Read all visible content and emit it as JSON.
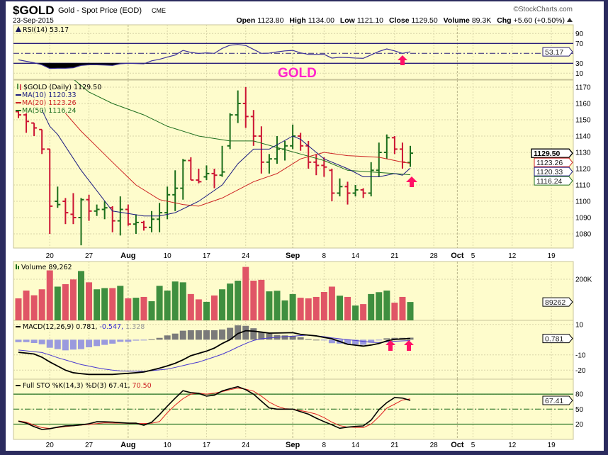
{
  "header": {
    "symbol": "$GOLD",
    "name": "Gold - Spot Price (EOD)",
    "exchange": "CME",
    "date": "23-Sep-2015",
    "copyright": "©StockCharts.com",
    "open_label": "Open",
    "open": "1123.80",
    "high_label": "High",
    "high": "1134.00",
    "low_label": "Low",
    "low": "1121.10",
    "close_label": "Close",
    "close": "1129.50",
    "volume_label": "Volume",
    "volume": "89.3K",
    "chg_label": "Chg",
    "chg": "+5.60 (+0.50%)",
    "up_icon": "triangle-up-icon"
  },
  "annotation": {
    "text": "GOLD",
    "color": "#ff22cc",
    "arrow_color": "#ff1166"
  },
  "colors": {
    "up": "#1b6e1b",
    "down": "#cc1433",
    "vol_up": "#3f8f3f",
    "vol_down": "#e05566",
    "ma10": "#1a1a80",
    "ma20": "#cc2222",
    "ma50": "#1e6e1e",
    "rsi": "#3a2e9c",
    "signal": "#4a3ad0",
    "hist_pos": "#7a7a7a",
    "hist_neg": "#9a9ade",
    "sto_d": "#e02222",
    "panel_bg": "#fefccc"
  },
  "chart_data": {
    "type": "ohlc",
    "legend": {
      "rsi": "RSI(14) 53.17",
      "price_main": "$GOLD (Daily) 1129.50",
      "ma10": "MA(10) 1120.33",
      "ma20": "MA(20) 1123.26",
      "ma50": "MA(50) 1116.24",
      "volume": "Volume 89,262",
      "macd_name": "MACD(12,26,9) 0.781,",
      "macd_signal": " -0.547,",
      "macd_hist": " 1.328",
      "sto_name": "Full STO %K(14,3) %D(3) 67.41,",
      "sto_d": " 70.50"
    },
    "x_ticks": [
      {
        "label": "20",
        "date": "2015-07-20"
      },
      {
        "label": "27",
        "date": "2015-07-27"
      },
      {
        "label": "Aug",
        "date": "2015-08-03",
        "month": true
      },
      {
        "label": "10",
        "date": "2015-08-10"
      },
      {
        "label": "17",
        "date": "2015-08-17"
      },
      {
        "label": "24",
        "date": "2015-08-24"
      },
      {
        "label": "Sep",
        "date": "2015-09-01",
        "month": true
      },
      {
        "label": "8",
        "date": "2015-09-08"
      },
      {
        "label": "14",
        "date": "2015-09-14"
      },
      {
        "label": "21",
        "date": "2015-09-21"
      },
      {
        "label": "28",
        "date": "2015-09-28"
      },
      {
        "label": "Oct",
        "date": "2015-10-01",
        "month": true
      },
      {
        "label": "5",
        "date": "2015-10-05"
      },
      {
        "label": "12",
        "date": "2015-10-12"
      },
      {
        "label": "19",
        "date": "2015-10-19"
      }
    ],
    "price_axis": {
      "ticks": [
        1170,
        1160,
        1150,
        1140,
        1130,
        1120,
        1110,
        1100,
        1090,
        1080
      ]
    },
    "rsi_axis": {
      "ticks": [
        90,
        70,
        30,
        10
      ],
      "lines": [
        70,
        30
      ],
      "center": 50
    },
    "volume_axis": {
      "ticks": [
        {
          "value": 200000,
          "label": "200K"
        }
      ]
    },
    "macd_axis": {
      "ticks": [
        10,
        -10,
        -20
      ]
    },
    "sto_axis": {
      "ticks": [
        80,
        50,
        20
      ],
      "lines": [
        80,
        20
      ],
      "center": 50
    },
    "tags": {
      "close": "1129.50",
      "ma20": "1123.26",
      "ma10": "1120.33",
      "ma50": "1116.24",
      "rsi": "53.17",
      "volume": "89262",
      "macd": "0.781",
      "sto": "67.41"
    },
    "bars_columns": [
      "date",
      "open",
      "high",
      "low",
      "close",
      "volume"
    ],
    "bars": [
      [
        "2015-07-14",
        1155,
        1156,
        1151,
        1153,
        107000
      ],
      [
        "2015-07-15",
        1153,
        1154,
        1142,
        1149,
        145000
      ],
      [
        "2015-07-16",
        1148,
        1148,
        1140,
        1145,
        122000
      ],
      [
        "2015-07-17",
        1144,
        1144,
        1129,
        1132,
        151000
      ],
      [
        "2015-07-20",
        1132,
        1132,
        1080,
        1097,
        243000
      ],
      [
        "2015-07-21",
        1100,
        1109,
        1096,
        1098,
        164000
      ],
      [
        "2015-07-22",
        1100,
        1102,
        1086,
        1093,
        176000
      ],
      [
        "2015-07-23",
        1092,
        1105,
        1086,
        1090,
        199000
      ],
      [
        "2015-07-24",
        1090,
        1102,
        1073,
        1101,
        240000
      ],
      [
        "2015-07-27",
        1101,
        1104,
        1088,
        1094,
        185000
      ],
      [
        "2015-07-28",
        1094,
        1098,
        1091,
        1095,
        151000
      ],
      [
        "2015-07-29",
        1095,
        1100,
        1089,
        1096,
        157000
      ],
      [
        "2015-07-30",
        1096,
        1097,
        1081,
        1088,
        157000
      ],
      [
        "2015-07-31",
        1088,
        1103,
        1079,
        1095,
        168000
      ],
      [
        "2015-08-03",
        1095,
        1098,
        1085,
        1086,
        107000
      ],
      [
        "2015-08-04",
        1086,
        1092,
        1080,
        1087,
        110000
      ],
      [
        "2015-08-05",
        1087,
        1088,
        1082,
        1084,
        114000
      ],
      [
        "2015-08-06",
        1084,
        1094,
        1081,
        1089,
        93000
      ],
      [
        "2015-08-07",
        1089,
        1099,
        1081,
        1093,
        168000
      ],
      [
        "2015-08-10",
        1093,
        1109,
        1089,
        1104,
        145000
      ],
      [
        "2015-08-11",
        1104,
        1119,
        1094,
        1108,
        189000
      ],
      [
        "2015-08-12",
        1108,
        1126,
        1101,
        1125,
        185000
      ],
      [
        "2015-08-13",
        1125,
        1127,
        1113,
        1113,
        128000
      ],
      [
        "2015-08-14",
        1113,
        1120,
        1111,
        1112,
        102000
      ],
      [
        "2015-08-17",
        1115,
        1122,
        1113,
        1117,
        90000
      ],
      [
        "2015-08-18",
        1117,
        1120,
        1108,
        1116,
        121000
      ],
      [
        "2015-08-19",
        1116,
        1134,
        1115,
        1118,
        151000
      ],
      [
        "2015-08-20",
        1134,
        1154,
        1132,
        1153,
        179000
      ],
      [
        "2015-08-21",
        1153,
        1168,
        1148,
        1160,
        193000
      ],
      [
        "2015-08-24",
        1160,
        1170,
        1145,
        1152,
        260000
      ],
      [
        "2015-08-25",
        1152,
        1156,
        1134,
        1140,
        193000
      ],
      [
        "2015-08-26",
        1140,
        1146,
        1117,
        1124,
        197000
      ],
      [
        "2015-08-27",
        1124,
        1129,
        1117,
        1126,
        141000
      ],
      [
        "2015-08-28",
        1126,
        1140,
        1123,
        1132,
        144000
      ],
      [
        "2015-08-31",
        1132,
        1137,
        1125,
        1134,
        97000
      ],
      [
        "2015-09-01",
        1134,
        1147,
        1132,
        1140,
        128000
      ],
      [
        "2015-09-02",
        1140,
        1142,
        1131,
        1134,
        110000
      ],
      [
        "2015-09-03",
        1134,
        1137,
        1120,
        1124,
        107000
      ],
      [
        "2015-09-04",
        1124,
        1129,
        1116,
        1122,
        114000
      ],
      [
        "2015-09-08",
        1122,
        1127,
        1115,
        1121,
        138000
      ],
      [
        "2015-09-09",
        1119,
        1120,
        1100,
        1105,
        164000
      ],
      [
        "2015-09-10",
        1105,
        1114,
        1103,
        1109,
        120000
      ],
      [
        "2015-09-11",
        1109,
        1112,
        1098,
        1105,
        114000
      ],
      [
        "2015-09-14",
        1105,
        1110,
        1103,
        1107,
        72000
      ],
      [
        "2015-09-15",
        1107,
        1108,
        1102,
        1105,
        79000
      ],
      [
        "2015-09-16",
        1105,
        1124,
        1103,
        1119,
        128000
      ],
      [
        "2015-09-17",
        1119,
        1136,
        1115,
        1130,
        137000
      ],
      [
        "2015-09-18",
        1130,
        1141,
        1126,
        1139,
        145000
      ],
      [
        "2015-09-21",
        1139,
        1140,
        1129,
        1132,
        86000
      ],
      [
        "2015-09-22",
        1132,
        1136,
        1120,
        1124,
        114000
      ],
      [
        "2015-09-23",
        1123.8,
        1134,
        1121.1,
        1129.5,
        89262
      ]
    ],
    "ma10": [
      [
        "2015-07-17",
        1156
      ],
      [
        "2015-07-20",
        1146
      ],
      [
        "2015-07-21",
        1141
      ],
      [
        "2015-07-24",
        1119
      ],
      [
        "2015-07-30",
        1094
      ],
      [
        "2015-08-05",
        1091
      ],
      [
        "2015-08-07",
        1091
      ],
      [
        "2015-08-11",
        1093
      ],
      [
        "2015-08-14",
        1100
      ],
      [
        "2015-08-19",
        1110
      ],
      [
        "2015-08-21",
        1123
      ],
      [
        "2015-08-25",
        1132
      ],
      [
        "2015-08-27",
        1132
      ],
      [
        "2015-09-01",
        1140
      ],
      [
        "2015-09-02",
        1138
      ],
      [
        "2015-09-08",
        1126
      ],
      [
        "2015-09-11",
        1120
      ],
      [
        "2015-09-15",
        1115
      ],
      [
        "2015-09-17",
        1115
      ],
      [
        "2015-09-21",
        1117
      ],
      [
        "2015-09-22",
        1116
      ],
      [
        "2015-09-23",
        1120.33
      ]
    ],
    "ma20": [
      [
        "2015-07-22",
        1154
      ],
      [
        "2015-07-24",
        1143
      ],
      [
        "2015-07-30",
        1124
      ],
      [
        "2015-08-04",
        1110
      ],
      [
        "2015-08-07",
        1101
      ],
      [
        "2015-08-12",
        1098
      ],
      [
        "2015-08-14",
        1097
      ],
      [
        "2015-08-19",
        1102
      ],
      [
        "2015-08-25",
        1112
      ],
      [
        "2015-08-28",
        1117
      ],
      [
        "2015-09-02",
        1126
      ],
      [
        "2015-09-08",
        1130
      ],
      [
        "2015-09-11",
        1128
      ],
      [
        "2015-09-17",
        1127
      ],
      [
        "2015-09-22",
        1124
      ],
      [
        "2015-09-23",
        1123.26
      ]
    ],
    "ma50": [
      [
        "2015-07-23",
        1175
      ],
      [
        "2015-07-27",
        1167
      ],
      [
        "2015-07-30",
        1160
      ],
      [
        "2015-08-05",
        1153
      ],
      [
        "2015-08-10",
        1146
      ],
      [
        "2015-08-14",
        1140
      ],
      [
        "2015-08-20",
        1137
      ],
      [
        "2015-08-25",
        1137
      ],
      [
        "2015-08-28",
        1133
      ],
      [
        "2015-09-02",
        1129
      ],
      [
        "2015-09-08",
        1125
      ],
      [
        "2015-09-11",
        1119
      ],
      [
        "2015-09-16",
        1118
      ],
      [
        "2015-09-21",
        1117
      ],
      [
        "2015-09-23",
        1116.24
      ]
    ],
    "rsi": [
      37,
      34,
      31,
      27,
      19.5,
      20,
      20,
      21,
      25.7,
      27,
      27,
      26.5,
      25.7,
      29,
      30,
      29.5,
      29,
      35,
      38,
      42.5,
      46.6,
      56,
      52,
      49.8,
      51,
      50,
      60,
      66.5,
      68,
      66,
      58,
      50,
      50.5,
      53,
      55,
      56,
      51,
      48,
      48,
      48,
      40.5,
      42,
      41.5,
      40.5,
      40,
      47,
      54,
      59,
      55,
      50,
      53.17
    ],
    "macd": [
      -8.3,
      -8.8,
      -9.4,
      -11.5,
      -14.6,
      -17.3,
      -20,
      -21.7,
      -22.3,
      -22.8,
      -22.8,
      -22.8,
      -22.8,
      -22.4,
      -22.1,
      -21.7,
      -21.2,
      -20,
      -18.7,
      -17.2,
      -15.5,
      -13.2,
      -10.5,
      -9,
      -7.5,
      -5.5,
      -2.5,
      0,
      4,
      5.9,
      5.6,
      5,
      4.3,
      4.4,
      4.5,
      4.6,
      3.5,
      3,
      2.5,
      1.5,
      0.6,
      -1.2,
      -3,
      -3.6,
      -4.2,
      -3.5,
      -2.5,
      -0.8,
      0.2,
      0.5,
      0.781
    ],
    "macd_signal": [
      -6.8,
      -7.3,
      -7.9,
      -8.4,
      -10,
      -11.8,
      -13.3,
      -14.8,
      -16.3,
      -17.3,
      -18.4,
      -19.3,
      -20,
      -20.5,
      -20.6,
      -20.7,
      -20.8,
      -20.3,
      -19.8,
      -19.3,
      -18.2,
      -17,
      -15.8,
      -14.7,
      -13,
      -11.3,
      -9.5,
      -7.3,
      -4.8,
      -2.5,
      -0.5,
      0.6,
      1.1,
      1.6,
      2,
      2.3,
      2.7,
      3,
      2.5,
      2,
      1.2,
      0.6,
      0,
      -0.5,
      -1.1,
      -1.7,
      -1.9,
      -1.4,
      -1,
      -0.8,
      -0.547
    ],
    "macd_hist": [
      -1.6,
      -1.6,
      -2.2,
      -3,
      -5.3,
      -6.2,
      -7,
      -6.5,
      -6.2,
      -5,
      -4.2,
      -3.4,
      -2.6,
      -1.4,
      -1.4,
      -0.6,
      -0.5,
      0.3,
      1.2,
      2.8,
      4,
      5.9,
      6.2,
      6.2,
      6.2,
      6.2,
      6.7,
      7.8,
      9.4,
      9.1,
      7.5,
      5.1,
      4,
      3.1,
      2.8,
      2.5,
      1.6,
      0.5,
      0,
      -0.3,
      -2.3,
      -2.6,
      -3.1,
      -3.1,
      -3.4,
      -1.9,
      -0.3,
      0.9,
      1.2,
      1.2,
      1.328
    ],
    "sto_k": [
      26,
      22,
      15,
      9.3,
      10.8,
      14,
      16.5,
      17,
      18.5,
      20.8,
      24.8,
      24.6,
      24.2,
      23,
      22,
      22,
      17.8,
      23.8,
      39,
      56,
      72,
      87,
      83,
      81.7,
      76,
      78,
      86.4,
      91,
      95,
      89,
      80,
      66,
      52.4,
      50,
      50,
      50,
      45,
      40,
      32,
      25,
      18.6,
      11.7,
      14,
      15.5,
      16.4,
      28,
      49,
      63,
      73.2,
      72.2,
      67.41
    ],
    "sto_d": [
      26.5,
      24,
      18,
      13,
      11.5,
      13,
      15.2,
      16.5,
      18,
      19.5,
      21,
      22.5,
      22.2,
      22,
      21.6,
      21.4,
      21.2,
      21.8,
      25,
      43,
      58,
      71,
      80,
      82,
      80,
      82,
      85,
      89,
      92,
      90,
      86,
      76,
      64,
      56,
      51,
      50,
      47,
      44,
      40,
      33,
      24,
      17,
      14,
      13.5,
      13.1,
      20,
      35,
      52,
      60,
      68.4,
      70.5
    ]
  }
}
